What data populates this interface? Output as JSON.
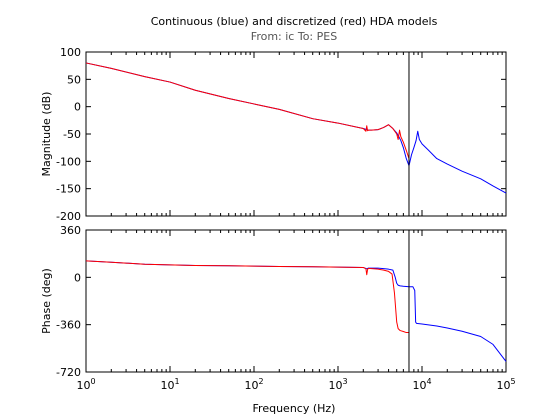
{
  "chart_data": {
    "type": "line",
    "title": "Continuous (blue) and discretized (red) HDA models",
    "subtitle": "From: ic  To: PES",
    "xlabel": "Frequency  (Hz)",
    "xscale": "log",
    "xlim": [
      1,
      100000
    ],
    "x_ticks": [
      {
        "value": 1,
        "base": "10",
        "exp": "0"
      },
      {
        "value": 10,
        "base": "10",
        "exp": "1"
      },
      {
        "value": 100,
        "base": "10",
        "exp": "2"
      },
      {
        "value": 1000,
        "base": "10",
        "exp": "3"
      },
      {
        "value": 10000,
        "base": "10",
        "exp": "4"
      },
      {
        "value": 100000,
        "base": "10",
        "exp": "5"
      }
    ],
    "vertical_marker_x": 7000,
    "colors": {
      "continuous": "#0000ff",
      "discretized": "#ff0000",
      "marker": "#000000",
      "axes": "#000000"
    },
    "subplots": [
      {
        "ylabel": "Magnitude (dB)",
        "ylim": [
          -200,
          100
        ],
        "y_ticks": [
          "100",
          "50",
          "0",
          "-50",
          "-100",
          "-150",
          "-200"
        ],
        "y_tick_values": [
          100,
          50,
          0,
          -50,
          -100,
          -150,
          -200
        ],
        "series": [
          {
            "key": "continuous",
            "x": [
              1,
              2,
              5,
              10,
              20,
              50,
              100,
              200,
              500,
              1000,
              2000,
              2200,
              2300,
              2500,
              3000,
              3500,
              4000,
              4500,
              5000,
              5300,
              5600,
              6000,
              6500,
              7000,
              7500,
              8000,
              8500,
              8900,
              9300,
              10000,
              12000,
              15000,
              20000,
              30000,
              50000,
              70000,
              100000
            ],
            "y": [
              80,
              70,
              55,
              45,
              30,
              15,
              5,
              -5,
              -22,
              -30,
              -40,
              -42,
              -43,
              -43,
              -42,
              -38,
              -33,
              -40,
              -48,
              -55,
              -62,
              -75,
              -95,
              -108,
              -88,
              -75,
              -62,
              -45,
              -60,
              -68,
              -80,
              -95,
              -105,
              -118,
              -132,
              -145,
              -158
            ]
          },
          {
            "key": "discretized",
            "x": [
              1,
              2,
              5,
              10,
              20,
              50,
              100,
              200,
              500,
              1000,
              2000,
              2150,
              2200,
              2250,
              2300,
              2500,
              3000,
              3500,
              4000,
              4500,
              5000,
              5200,
              5400,
              5600,
              6000,
              6500,
              7000
            ],
            "y": [
              80,
              70,
              55,
              45,
              30,
              15,
              5,
              -5,
              -22,
              -30,
              -40,
              -45,
              -35,
              -44,
              -43,
              -43,
              -42,
              -38,
              -33,
              -40,
              -50,
              -60,
              -43,
              -55,
              -65,
              -80,
              -95
            ]
          }
        ]
      },
      {
        "ylabel": "Phase (deg)",
        "ylim": [
          -720,
          360
        ],
        "y_ticks": [
          "360",
          "0",
          "-360",
          "-720"
        ],
        "y_tick_values": [
          360,
          0,
          -360,
          -720
        ],
        "series": [
          {
            "key": "continuous",
            "x": [
              1,
              2,
              5,
              10,
              20,
              50,
              100,
              200,
              500,
              1000,
              2000,
              2200,
              2300,
              3000,
              4000,
              4500,
              4800,
              5000,
              5200,
              5500,
              6000,
              6500,
              7000,
              7200,
              7800,
              8200,
              8400,
              8600,
              10000,
              15000,
              20000,
              30000,
              50000,
              70000,
              100000
            ],
            "y": [
              125,
              115,
              100,
              95,
              90,
              88,
              85,
              82,
              80,
              78,
              75,
              65,
              70,
              70,
              62,
              55,
              0,
              -45,
              -60,
              -65,
              -68,
              -70,
              -72,
              -72,
              -72,
              -100,
              -340,
              -350,
              -355,
              -370,
              -385,
              -410,
              -450,
              -510,
              -640
            ]
          },
          {
            "key": "discretized",
            "x": [
              1,
              2,
              5,
              10,
              20,
              50,
              100,
              200,
              500,
              1000,
              2000,
              2150,
              2200,
              2250,
              2300,
              3000,
              3500,
              4000,
              4400,
              4700,
              5000,
              5200,
              5500,
              6000,
              6500,
              7000
            ],
            "y": [
              125,
              115,
              100,
              95,
              90,
              88,
              85,
              82,
              80,
              78,
              75,
              65,
              20,
              60,
              68,
              62,
              55,
              45,
              25,
              -120,
              -340,
              -390,
              -405,
              -412,
              -420,
              -420
            ]
          }
        ]
      }
    ]
  }
}
